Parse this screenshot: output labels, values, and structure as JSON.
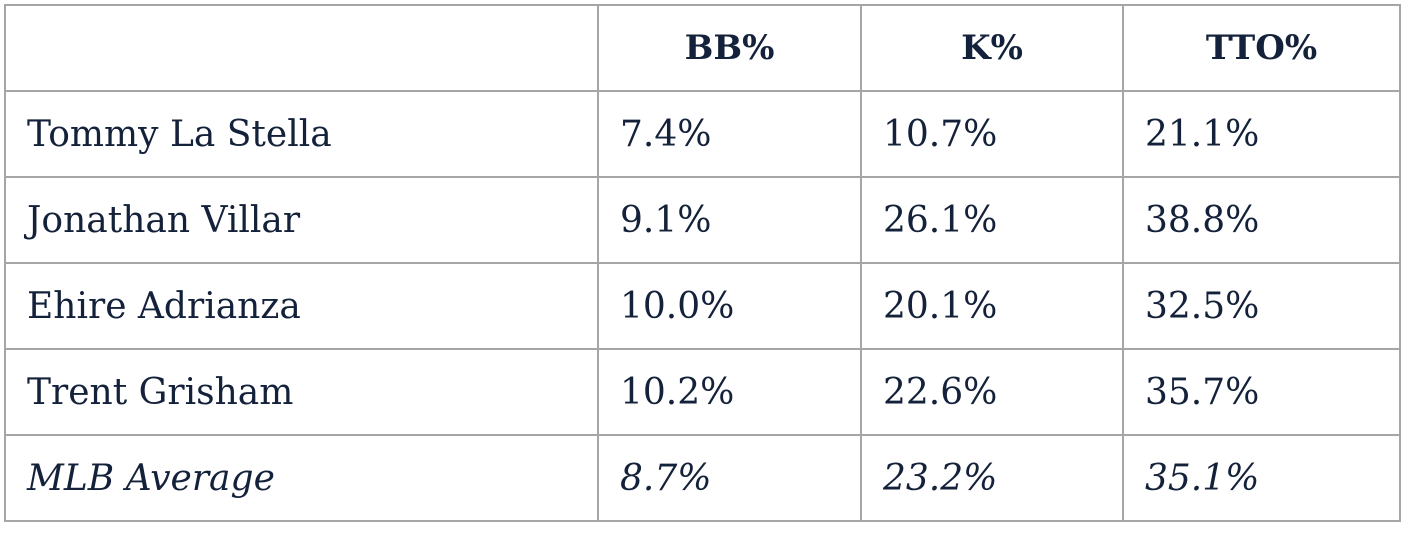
{
  "table": {
    "headers": [
      "",
      "BB%",
      "K%",
      "TTO%"
    ],
    "rows": [
      {
        "name": "Tommy La Stella",
        "bb": "7.4%",
        "k": "10.7%",
        "tto": "21.1%"
      },
      {
        "name": "Jonathan Villar",
        "bb": "9.1%",
        "k": "26.1%",
        "tto": "38.8%"
      },
      {
        "name": "Ehire Adrianza",
        "bb": "10.0%",
        "k": "20.1%",
        "tto": "32.5%"
      },
      {
        "name": "Trent Grisham",
        "bb": "10.2%",
        "k": "22.6%",
        "tto": "35.7%"
      }
    ],
    "average": {
      "name": "MLB Average",
      "bb": "8.7%",
      "k": "23.2%",
      "tto": "35.1%"
    }
  }
}
